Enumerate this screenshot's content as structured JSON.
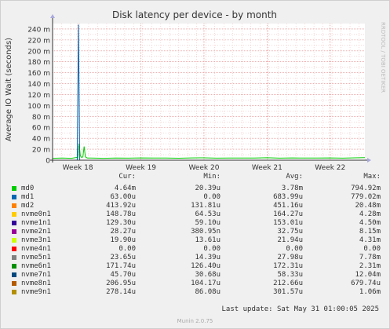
{
  "chart_data": {
    "type": "line",
    "title": "Disk latency per device - by month",
    "ylabel": "Average IO Wait (seconds)",
    "watermark": "RRDTOOL / TOBI OETIKER",
    "ylim": [
      0,
      250
    ],
    "y_ticks": [
      {
        "value": 0,
        "label": "0"
      },
      {
        "value": 20,
        "label": "20 m"
      },
      {
        "value": 40,
        "label": "40 m"
      },
      {
        "value": 60,
        "label": "60 m"
      },
      {
        "value": 80,
        "label": "80 m"
      },
      {
        "value": 100,
        "label": "100 m"
      },
      {
        "value": 120,
        "label": "120 m"
      },
      {
        "value": 140,
        "label": "140 m"
      },
      {
        "value": 160,
        "label": "160 m"
      },
      {
        "value": 180,
        "label": "180 m"
      },
      {
        "value": 200,
        "label": "200 m"
      },
      {
        "value": 220,
        "label": "220 m"
      },
      {
        "value": 240,
        "label": "240 m"
      }
    ],
    "xlim": [
      17.6,
      22.55
    ],
    "x_ticks": [
      {
        "value": 18,
        "label": "Week 18"
      },
      {
        "value": 19,
        "label": "Week 19"
      },
      {
        "value": 20,
        "label": "Week 20"
      },
      {
        "value": 21,
        "label": "Week 21"
      },
      {
        "value": 22,
        "label": "Week 22"
      }
    ],
    "series": [
      {
        "name": "md0",
        "color": "#00cc00",
        "x": [
          17.6,
          17.75,
          17.9,
          17.98,
          18.0,
          18.02,
          18.04,
          18.06,
          18.08,
          18.1,
          18.12,
          18.15,
          18.2,
          18.4,
          18.6,
          18.8,
          19.0,
          19.2,
          19.4,
          19.6,
          19.8,
          20.0,
          20.2,
          20.4,
          20.6,
          20.8,
          21.0,
          21.2,
          21.4,
          21.6,
          21.8,
          22.0,
          22.2,
          22.4,
          22.55
        ],
        "y": [
          3.5,
          4,
          3.5,
          5,
          4,
          30,
          8,
          5,
          6,
          25,
          6,
          4,
          4,
          3.5,
          4,
          3.8,
          4.2,
          3.9,
          4,
          3.6,
          4.1,
          4.3,
          3.7,
          4,
          3.9,
          4,
          4.4,
          3.8,
          4.1,
          3.9,
          4,
          4.2,
          3.8,
          4.3,
          4.6
        ]
      },
      {
        "name": "md1",
        "color": "#0066b3",
        "x": [
          17.6,
          17.95,
          17.99,
          18.01,
          18.03,
          18.2,
          20.0,
          22.55
        ],
        "y": [
          0,
          0,
          0,
          248,
          0,
          0,
          0,
          0
        ]
      }
    ]
  },
  "legend": {
    "headers": {
      "cur": "Cur:",
      "min": "Min:",
      "avg": "Avg:",
      "max": "Max:"
    },
    "rows": [
      {
        "name": "md0",
        "color": "#00cc00",
        "cur": "4.64m",
        "min": "20.39u",
        "avg": "3.78m",
        "max": "794.92m"
      },
      {
        "name": "md1",
        "color": "#0066b3",
        "cur": "63.00u",
        "min": "0.00",
        "avg": "683.99u",
        "max": "779.02m"
      },
      {
        "name": "md2",
        "color": "#ff8000",
        "cur": "413.92u",
        "min": "131.81u",
        "avg": "451.16u",
        "max": "20.48m"
      },
      {
        "name": "nvme0n1",
        "color": "#ffcc00",
        "cur": "148.78u",
        "min": "64.53u",
        "avg": "164.27u",
        "max": "4.28m"
      },
      {
        "name": "nvme1n1",
        "color": "#330099",
        "cur": "129.30u",
        "min": "59.10u",
        "avg": "153.01u",
        "max": "4.50m"
      },
      {
        "name": "nvme2n1",
        "color": "#990099",
        "cur": "28.27u",
        "min": "380.95n",
        "avg": "32.75u",
        "max": "8.15m"
      },
      {
        "name": "nvme3n1",
        "color": "#ccff00",
        "cur": "19.90u",
        "min": "13.61u",
        "avg": "21.94u",
        "max": "4.31m"
      },
      {
        "name": "nvme4n1",
        "color": "#ff0000",
        "cur": "0.00",
        "min": "0.00",
        "avg": "0.00",
        "max": "0.00"
      },
      {
        "name": "nvme5n1",
        "color": "#808080",
        "cur": "23.65u",
        "min": "14.39u",
        "avg": "27.98u",
        "max": "7.78m"
      },
      {
        "name": "nvme6n1",
        "color": "#008f00",
        "cur": "171.74u",
        "min": "126.40u",
        "avg": "172.31u",
        "max": "2.31m"
      },
      {
        "name": "nvme7n1",
        "color": "#00487d",
        "cur": "45.70u",
        "min": "30.68u",
        "avg": "58.33u",
        "max": "12.04m"
      },
      {
        "name": "nvme8n1",
        "color": "#b35a00",
        "cur": "206.95u",
        "min": "104.17u",
        "avg": "212.66u",
        "max": "679.74u"
      },
      {
        "name": "nvme9n1",
        "color": "#b38f00",
        "cur": "278.14u",
        "min": "86.08u",
        "avg": "301.57u",
        "max": "1.06m"
      }
    ]
  },
  "footer": {
    "last_update": "Last update: Sat May 31 01:00:05 2025",
    "version": "Munin 2.0.75"
  }
}
